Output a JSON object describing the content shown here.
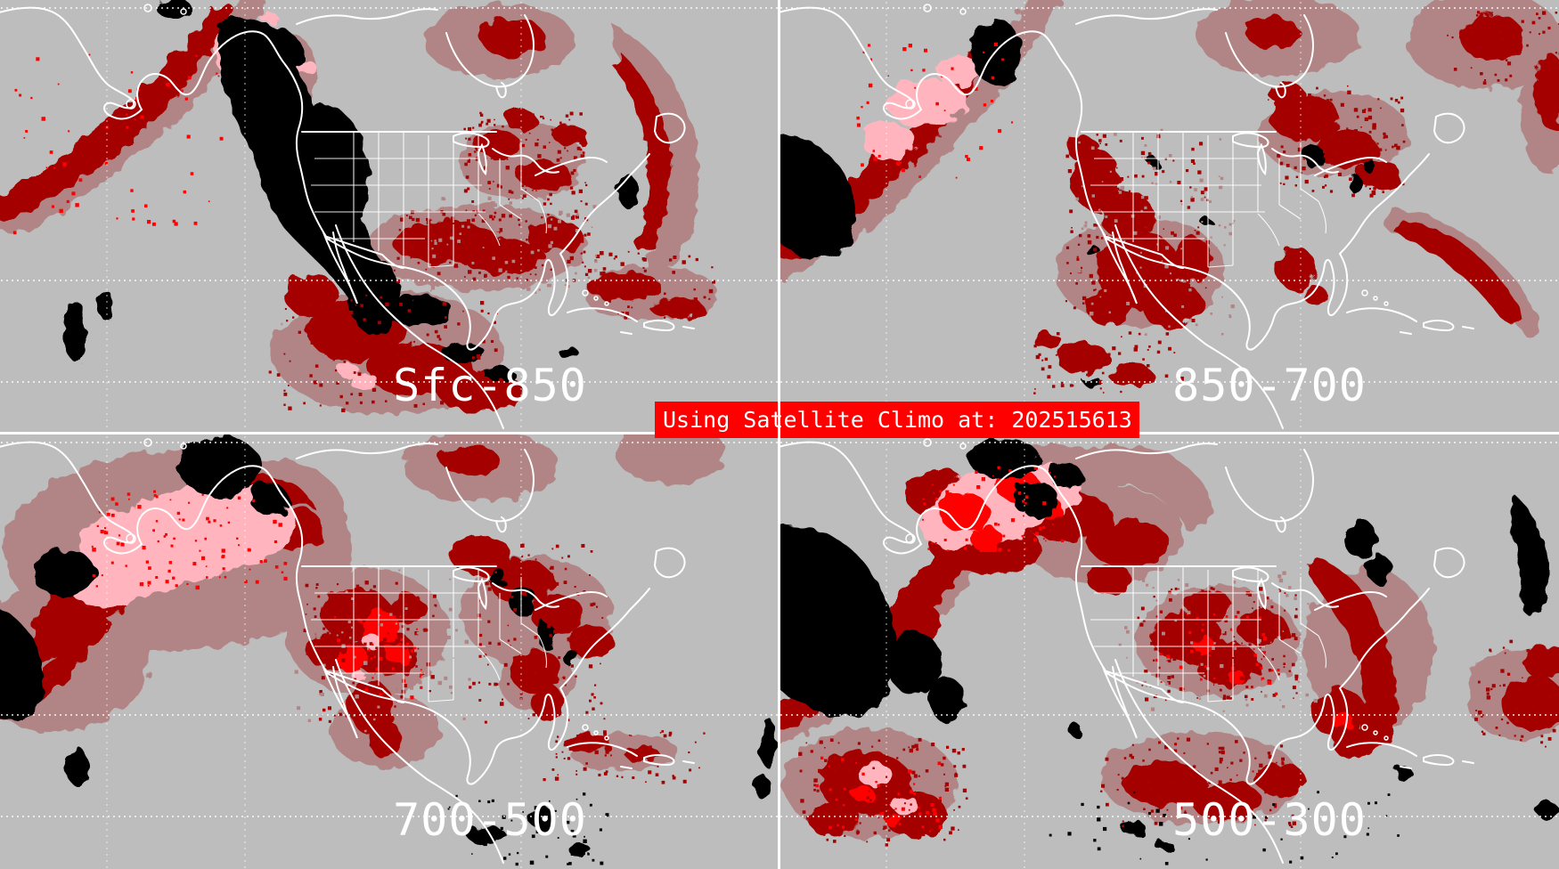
{
  "product": {
    "banner": {
      "text": "Using Satellite Climo at: 202515613"
    },
    "panels": [
      {
        "id": "sfc-850",
        "label": "Sfc-850"
      },
      {
        "id": "850-700",
        "label": "850-700"
      },
      {
        "id": "700-500",
        "label": "700-500"
      },
      {
        "id": "500-300",
        "label": "500-300"
      }
    ],
    "palette": {
      "background": "#bdbdbd",
      "rosy_brown": "#b18585",
      "dark_red": "#a50303",
      "bright_red": "#ff0000",
      "pink": "#ffb4be",
      "black": "#000000",
      "map_lines": "#ffffff"
    }
  }
}
